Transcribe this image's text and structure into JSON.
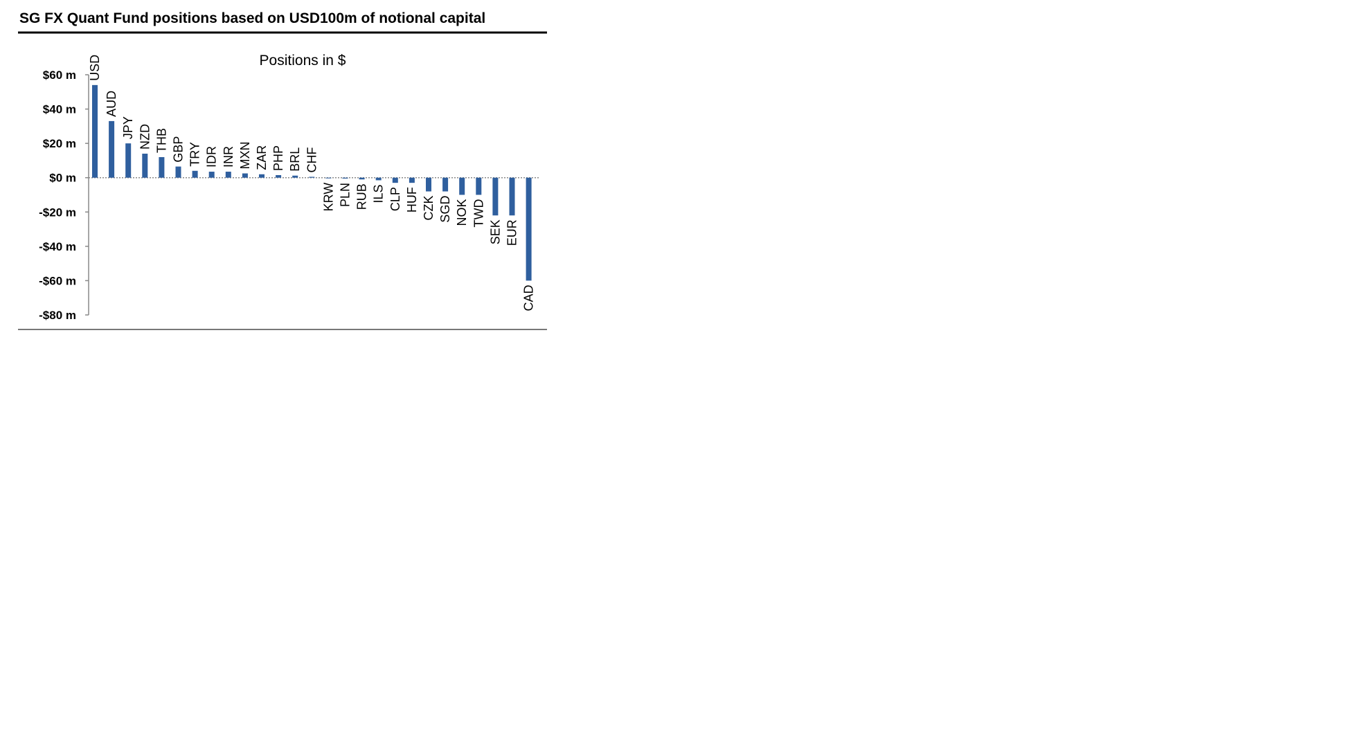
{
  "header": {
    "title": "SG FX Quant Fund positions based on USD100m of notional capital"
  },
  "chart_data": {
    "type": "bar",
    "title": "Positions in $",
    "xlabel": "",
    "ylabel": "",
    "ylim": [
      -80,
      60
    ],
    "yticks": [
      60,
      40,
      20,
      0,
      -20,
      -40,
      -60,
      -80
    ],
    "ytick_labels": [
      "$60 m",
      "$40 m",
      "$20 m",
      "$0 m",
      "-$20 m",
      "-$40 m",
      "-$60 m",
      "-$80 m"
    ],
    "categories": [
      "USD",
      "AUD",
      "JPY",
      "NZD",
      "THB",
      "GBP",
      "TRY",
      "IDR",
      "INR",
      "MXN",
      "ZAR",
      "PHP",
      "BRL",
      "CHF",
      "KRW",
      "PLN",
      "RUB",
      "ILS",
      "CLP",
      "HUF",
      "CZK",
      "SGD",
      "NOK",
      "TWD",
      "SEK",
      "EUR",
      "CAD"
    ],
    "values": [
      54,
      33,
      20,
      14,
      12,
      6.5,
      4,
      3.5,
      3.5,
      2.5,
      2,
      1.5,
      1.2,
      0.5,
      -0.3,
      -0.5,
      -1,
      -1.5,
      -3,
      -3,
      -8,
      -8,
      -10,
      -10,
      -22,
      -22,
      -60
    ],
    "grid": false,
    "legend": "none",
    "bar_color": "#2f5f9e"
  }
}
